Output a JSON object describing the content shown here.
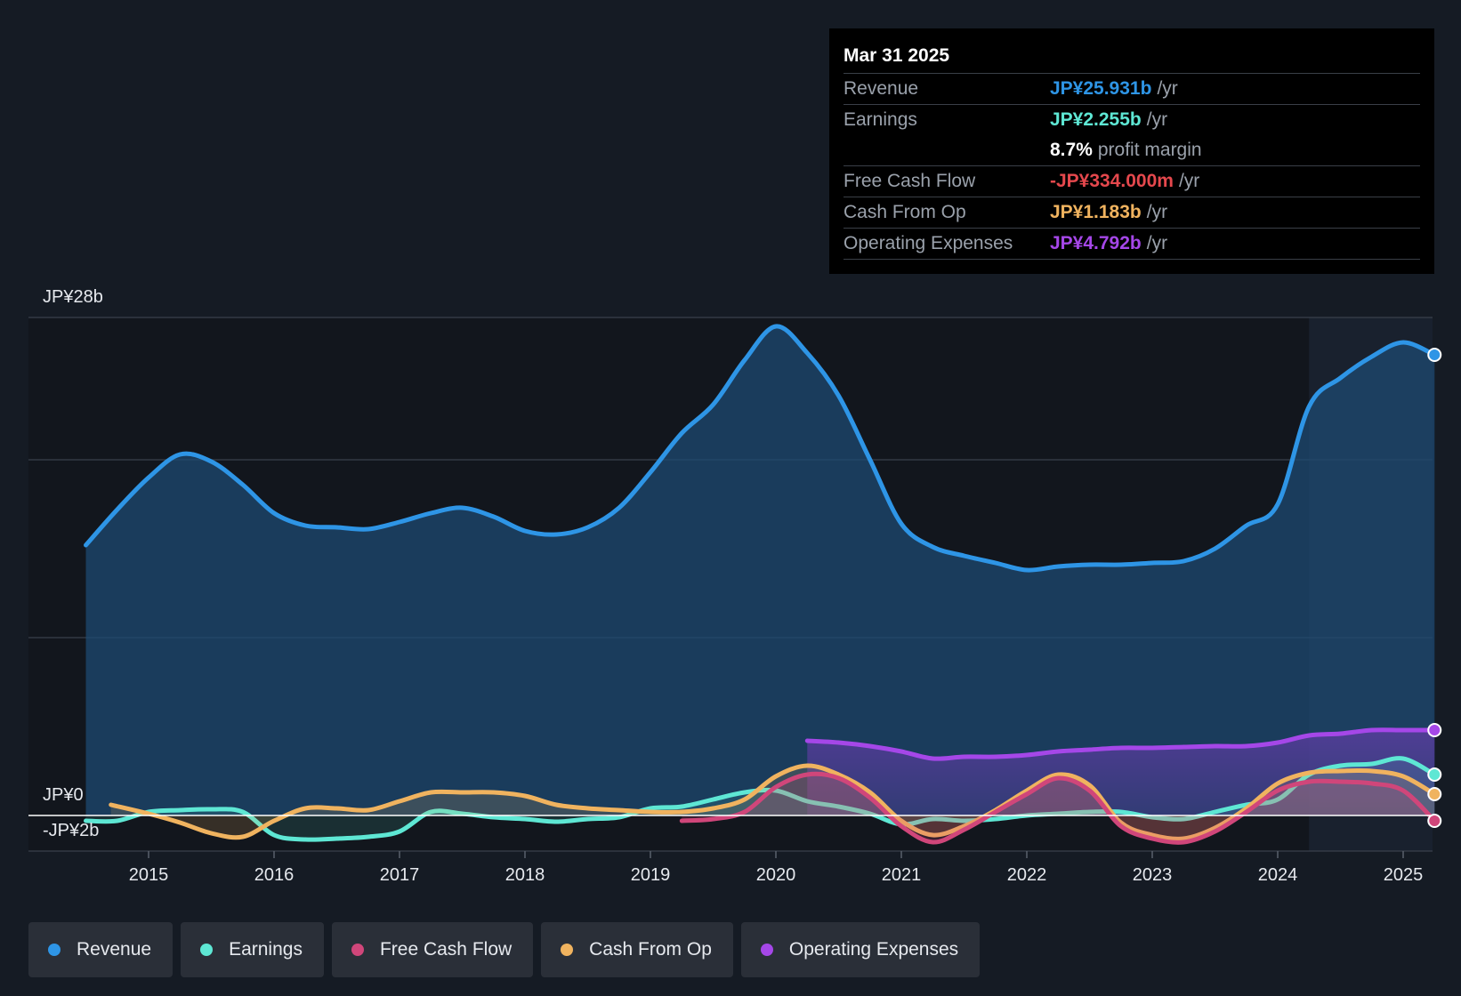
{
  "tooltip": {
    "date": "Mar 31 2025",
    "rows": [
      {
        "label": "Revenue",
        "value": "JP¥25.931b",
        "unit": "/yr",
        "color": "#2e95e6"
      },
      {
        "label": "Earnings",
        "value": "JP¥2.255b",
        "unit": "/yr",
        "color": "#5ee7d4"
      },
      {
        "label": "",
        "value": "8.7%",
        "unit": "profit margin",
        "color": "#ffffff"
      },
      {
        "label": "Free Cash Flow",
        "value": "-JP¥334.000m",
        "unit": "/yr",
        "color": "#e5484d"
      },
      {
        "label": "Cash From Op",
        "value": "JP¥1.183b",
        "unit": "/yr",
        "color": "#f0b35f"
      },
      {
        "label": "Operating Expenses",
        "value": "JP¥4.792b",
        "unit": "/yr",
        "color": "#a547e8"
      }
    ]
  },
  "legend": [
    {
      "label": "Revenue",
      "color": "#2e95e6"
    },
    {
      "label": "Earnings",
      "color": "#5ee7d4"
    },
    {
      "label": "Free Cash Flow",
      "color": "#d0467a"
    },
    {
      "label": "Cash From Op",
      "color": "#f0b35f"
    },
    {
      "label": "Operating Expenses",
      "color": "#a547e8"
    }
  ],
  "chart_data": {
    "type": "area",
    "title": "",
    "xlabel": "",
    "ylabel": "",
    "y_top_label": "JP¥28b",
    "y_zero_label": "JP¥0",
    "y_bottom_label": "-JP¥2b",
    "ylim": [
      -2,
      28
    ],
    "xlim": [
      2014.25,
      2025.25
    ],
    "x_ticks": [
      2015,
      2016,
      2017,
      2018,
      2019,
      2020,
      2021,
      2022,
      2023,
      2024,
      2025
    ],
    "x_tick_labels": [
      "2015",
      "2016",
      "2017",
      "2018",
      "2019",
      "2020",
      "2021",
      "2022",
      "2023",
      "2024",
      "2025"
    ],
    "gridlines": [
      28,
      20,
      10
    ],
    "highlight_start": 2024.25,
    "series": [
      {
        "name": "Revenue",
        "color": "#2e95e6",
        "fill": true,
        "x": [
          2014.5,
          2014.75,
          2015.0,
          2015.25,
          2015.5,
          2015.75,
          2016.0,
          2016.25,
          2016.5,
          2016.75,
          2017.0,
          2017.25,
          2017.5,
          2017.75,
          2018.0,
          2018.25,
          2018.5,
          2018.75,
          2019.0,
          2019.25,
          2019.5,
          2019.75,
          2020.0,
          2020.25,
          2020.5,
          2020.75,
          2021.0,
          2021.25,
          2021.5,
          2021.75,
          2022.0,
          2022.25,
          2022.5,
          2022.75,
          2023.0,
          2023.25,
          2023.5,
          2023.75,
          2024.0,
          2024.25,
          2024.5,
          2024.75,
          2025.0,
          2025.25
        ],
        "values": [
          15.2,
          17.2,
          19.0,
          20.3,
          19.9,
          18.6,
          17.0,
          16.3,
          16.2,
          16.1,
          16.5,
          17.0,
          17.3,
          16.8,
          16.0,
          15.8,
          16.2,
          17.3,
          19.3,
          21.5,
          23.1,
          25.6,
          27.5,
          26.0,
          23.6,
          20.0,
          16.4,
          15.1,
          14.6,
          14.2,
          13.8,
          14.0,
          14.1,
          14.1,
          14.2,
          14.3,
          15.0,
          16.3,
          17.5,
          23.0,
          24.6,
          25.8,
          26.6,
          25.9
        ]
      },
      {
        "name": "Operating Expenses",
        "color": "#a547e8",
        "fill": true,
        "x": [
          2020.25,
          2020.5,
          2020.75,
          2021.0,
          2021.25,
          2021.5,
          2021.75,
          2022.0,
          2022.25,
          2022.5,
          2022.75,
          2023.0,
          2023.25,
          2023.5,
          2023.75,
          2024.0,
          2024.25,
          2024.5,
          2024.75,
          2025.0,
          2025.25
        ],
        "values": [
          4.2,
          4.1,
          3.9,
          3.6,
          3.2,
          3.3,
          3.3,
          3.4,
          3.6,
          3.7,
          3.8,
          3.8,
          3.85,
          3.9,
          3.9,
          4.1,
          4.5,
          4.6,
          4.8,
          4.8,
          4.8
        ]
      },
      {
        "name": "Earnings",
        "color": "#5ee7d4",
        "fill": true,
        "x": [
          2014.5,
          2014.75,
          2015.0,
          2015.25,
          2015.5,
          2015.75,
          2016.0,
          2016.25,
          2016.5,
          2016.75,
          2017.0,
          2017.25,
          2017.5,
          2017.75,
          2018.0,
          2018.25,
          2018.5,
          2018.75,
          2019.0,
          2019.25,
          2019.5,
          2019.75,
          2020.0,
          2020.25,
          2020.5,
          2020.75,
          2021.0,
          2021.25,
          2021.5,
          2021.75,
          2022.0,
          2022.25,
          2022.5,
          2022.75,
          2023.0,
          2023.25,
          2023.5,
          2023.75,
          2024.0,
          2024.25,
          2024.5,
          2024.75,
          2025.0,
          2025.25
        ],
        "values": [
          -0.3,
          -0.3,
          0.2,
          0.3,
          0.35,
          0.2,
          -1.1,
          -1.35,
          -1.3,
          -1.2,
          -0.9,
          0.2,
          0.1,
          -0.1,
          -0.2,
          -0.35,
          -0.2,
          -0.1,
          0.4,
          0.5,
          0.9,
          1.3,
          1.4,
          0.8,
          0.5,
          0.1,
          -0.5,
          -0.2,
          -0.3,
          -0.2,
          0.0,
          0.1,
          0.2,
          0.2,
          -0.1,
          -0.2,
          0.2,
          0.6,
          0.9,
          2.3,
          2.8,
          2.9,
          3.2,
          2.3
        ]
      },
      {
        "name": "Cash From Op",
        "color": "#f0b35f",
        "fill": true,
        "x": [
          2014.7,
          2015.0,
          2015.25,
          2015.5,
          2015.75,
          2016.0,
          2016.25,
          2016.5,
          2016.75,
          2017.0,
          2017.25,
          2017.5,
          2017.75,
          2018.0,
          2018.25,
          2018.5,
          2018.75,
          2019.0,
          2019.25,
          2019.5,
          2019.75,
          2020.0,
          2020.25,
          2020.5,
          2020.75,
          2021.0,
          2021.25,
          2021.5,
          2021.75,
          2022.0,
          2022.25,
          2022.5,
          2022.75,
          2023.0,
          2023.25,
          2023.5,
          2023.75,
          2024.0,
          2024.25,
          2024.5,
          2024.75,
          2025.0,
          2025.25
        ],
        "values": [
          0.6,
          0.1,
          -0.4,
          -1.0,
          -1.2,
          -0.3,
          0.4,
          0.4,
          0.3,
          0.8,
          1.3,
          1.3,
          1.3,
          1.1,
          0.6,
          0.4,
          0.3,
          0.2,
          0.2,
          0.4,
          0.9,
          2.2,
          2.8,
          2.3,
          1.3,
          -0.3,
          -1.1,
          -0.6,
          0.3,
          1.4,
          2.3,
          1.7,
          -0.4,
          -1.1,
          -1.3,
          -0.7,
          0.4,
          1.8,
          2.4,
          2.5,
          2.5,
          2.2,
          1.2
        ]
      },
      {
        "name": "Free Cash Flow",
        "color": "#d0467a",
        "fill": true,
        "x": [
          2019.25,
          2019.5,
          2019.75,
          2020.0,
          2020.25,
          2020.5,
          2020.75,
          2021.0,
          2021.25,
          2021.5,
          2021.75,
          2022.0,
          2022.25,
          2022.5,
          2022.75,
          2023.0,
          2023.25,
          2023.5,
          2023.75,
          2024.0,
          2024.25,
          2024.5,
          2024.75,
          2025.0,
          2025.25
        ],
        "values": [
          -0.3,
          -0.2,
          0.2,
          1.6,
          2.3,
          2.1,
          1.0,
          -0.6,
          -1.5,
          -0.8,
          0.2,
          1.2,
          2.1,
          1.4,
          -0.6,
          -1.3,
          -1.5,
          -0.9,
          0.2,
          1.4,
          1.9,
          1.9,
          1.8,
          1.4,
          -0.3
        ]
      }
    ]
  }
}
